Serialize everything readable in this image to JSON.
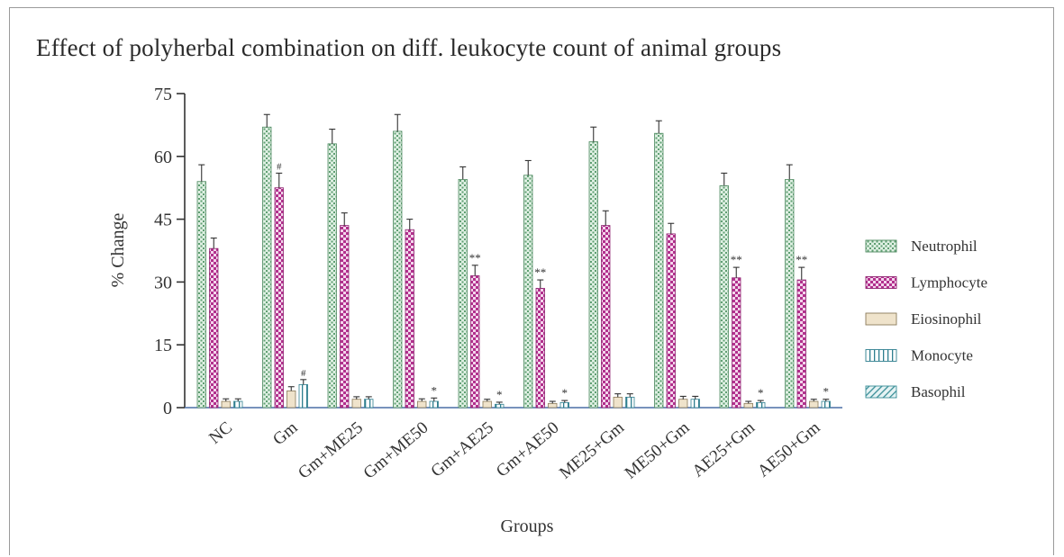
{
  "chart_data": {
    "type": "bar",
    "title": "Effect of polyherbal combination on diff. leukocyte count of animal groups",
    "xlabel": "Groups",
    "ylabel": "% Change",
    "ylim": [
      0,
      75
    ],
    "yticks": [
      "0",
      "15",
      "30",
      "45",
      "60",
      "75"
    ],
    "categories": [
      "NC",
      "Gm",
      "Gm+ME25",
      "Gm+ME50",
      "Gm+AE25",
      "Gm+AE50",
      "ME25+Gm",
      "ME50+Gm",
      "AE25+Gm",
      "AE50+Gm"
    ],
    "legend_position": "right",
    "series": [
      {
        "name": "Neutrophil",
        "color": "#8fc9a0",
        "pattern": "dots",
        "values": [
          54,
          67,
          63,
          66,
          54.5,
          55.5,
          63.5,
          65.5,
          53,
          54.5
        ],
        "errors": [
          4,
          3,
          3.5,
          4,
          3,
          3.5,
          3.5,
          3,
          3,
          3.5
        ],
        "marks": [
          "",
          "",
          "",
          "",
          "",
          "",
          "",
          "",
          "",
          ""
        ]
      },
      {
        "name": "Lymphocyte",
        "color": "#c0399a",
        "pattern": "checker",
        "values": [
          38,
          52.5,
          43.5,
          42.5,
          31.5,
          28.5,
          43.5,
          41.5,
          31,
          30.5
        ],
        "errors": [
          2.5,
          3.5,
          3,
          2.5,
          2.5,
          2,
          3.5,
          2.5,
          2.5,
          3
        ],
        "marks": [
          "",
          "#",
          "",
          "",
          "**",
          "**",
          "",
          "",
          "**",
          "**"
        ]
      },
      {
        "name": "Eiosinophil",
        "color": "#ede0c6",
        "pattern": "solid",
        "values": [
          1.5,
          4,
          2,
          1.5,
          1.5,
          1,
          2.5,
          2,
          1,
          1.5
        ],
        "errors": [
          0.6,
          1,
          0.6,
          0.6,
          0.5,
          0.5,
          0.8,
          0.7,
          0.5,
          0.5
        ],
        "marks": [
          "",
          "",
          "",
          "",
          "",
          "",
          "",
          "",
          "",
          ""
        ]
      },
      {
        "name": "Monocyte",
        "color": "#2f7f8f",
        "pattern": "vlines",
        "values": [
          1.5,
          5.5,
          2,
          1.5,
          0.8,
          1.2,
          2.5,
          2,
          1.2,
          1.5
        ],
        "errors": [
          0.6,
          1.2,
          0.6,
          0.8,
          0.5,
          0.5,
          0.8,
          0.7,
          0.5,
          0.5
        ],
        "marks": [
          "",
          "#",
          "",
          "*",
          "*",
          "*",
          "",
          "",
          "*",
          "*"
        ]
      },
      {
        "name": "Basophil",
        "color": "#5aa7b0",
        "pattern": "diag",
        "values": [
          0,
          0,
          0,
          0,
          0,
          0,
          0,
          0,
          0,
          0
        ],
        "errors": [
          0,
          0,
          0,
          0,
          0,
          0,
          0,
          0,
          0,
          0
        ],
        "marks": [
          "",
          "",
          "",
          "",
          "",
          "",
          "",
          "",
          "",
          ""
        ]
      }
    ]
  }
}
